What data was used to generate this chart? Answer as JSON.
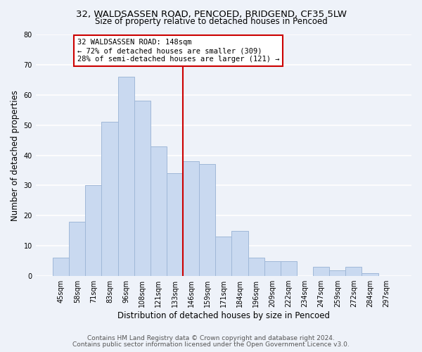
{
  "title": "32, WALDSASSEN ROAD, PENCOED, BRIDGEND, CF35 5LW",
  "subtitle": "Size of property relative to detached houses in Pencoed",
  "xlabel": "Distribution of detached houses by size in Pencoed",
  "ylabel": "Number of detached properties",
  "bar_color": "#c9d9f0",
  "bar_edge_color": "#a0b8d8",
  "categories": [
    "45sqm",
    "58sqm",
    "71sqm",
    "83sqm",
    "96sqm",
    "108sqm",
    "121sqm",
    "133sqm",
    "146sqm",
    "159sqm",
    "171sqm",
    "184sqm",
    "196sqm",
    "209sqm",
    "222sqm",
    "234sqm",
    "247sqm",
    "259sqm",
    "272sqm",
    "284sqm",
    "297sqm"
  ],
  "values": [
    6,
    18,
    30,
    51,
    66,
    58,
    43,
    34,
    38,
    37,
    13,
    15,
    6,
    5,
    5,
    0,
    3,
    2,
    3,
    1,
    0
  ],
  "vline_index": 8,
  "vline_color": "#cc0000",
  "annotation_text": "32 WALDSASSEN ROAD: 148sqm\n← 72% of detached houses are smaller (309)\n28% of semi-detached houses are larger (121) →",
  "annotation_box_color": "white",
  "annotation_box_edge_color": "#cc0000",
  "ylim": [
    0,
    80
  ],
  "yticks": [
    0,
    10,
    20,
    30,
    40,
    50,
    60,
    70,
    80
  ],
  "footer_line1": "Contains HM Land Registry data © Crown copyright and database right 2024.",
  "footer_line2": "Contains public sector information licensed under the Open Government Licence v3.0.",
  "background_color": "#eef2f9",
  "grid_color": "white",
  "title_fontsize": 9.5,
  "subtitle_fontsize": 8.5,
  "axis_label_fontsize": 8.5,
  "tick_fontsize": 7.0,
  "annotation_fontsize": 7.5,
  "footer_fontsize": 6.5
}
